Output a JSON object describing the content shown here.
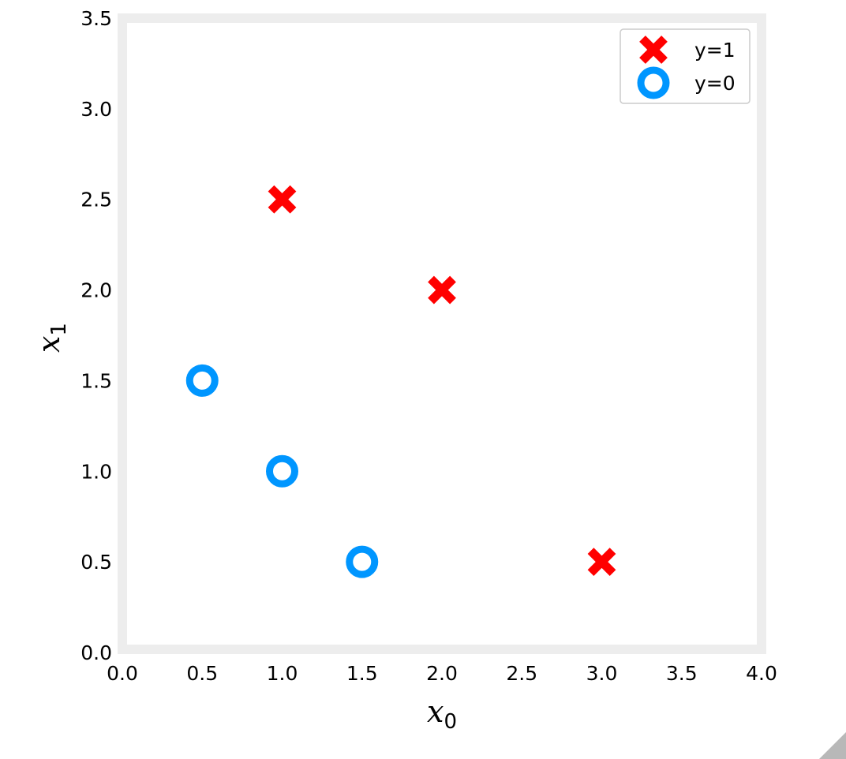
{
  "chart_data": {
    "type": "scatter",
    "title": "",
    "xlabel": {
      "base": "x",
      "sub": "0"
    },
    "ylabel": {
      "base": "x",
      "sub": "1"
    },
    "xlim": [
      0,
      4
    ],
    "ylim": [
      0,
      3.5
    ],
    "xticks": [
      "0.0",
      "0.5",
      "1.0",
      "1.5",
      "2.0",
      "2.5",
      "3.0",
      "3.5",
      "4.0"
    ],
    "yticks": [
      "0.0",
      "0.5",
      "1.0",
      "1.5",
      "2.0",
      "2.5",
      "3.0",
      "3.5"
    ],
    "grid": false,
    "legend_position": "top-right",
    "series": [
      {
        "name": "y=1",
        "marker": "x",
        "color": "#ff0000",
        "points": [
          [
            1.0,
            2.5
          ],
          [
            2.0,
            2.0
          ],
          [
            3.0,
            0.5
          ]
        ]
      },
      {
        "name": "y=0",
        "marker": "o",
        "color": "#0096ff",
        "points": [
          [
            0.5,
            1.5
          ],
          [
            1.0,
            1.0
          ],
          [
            1.5,
            0.5
          ]
        ]
      }
    ]
  }
}
